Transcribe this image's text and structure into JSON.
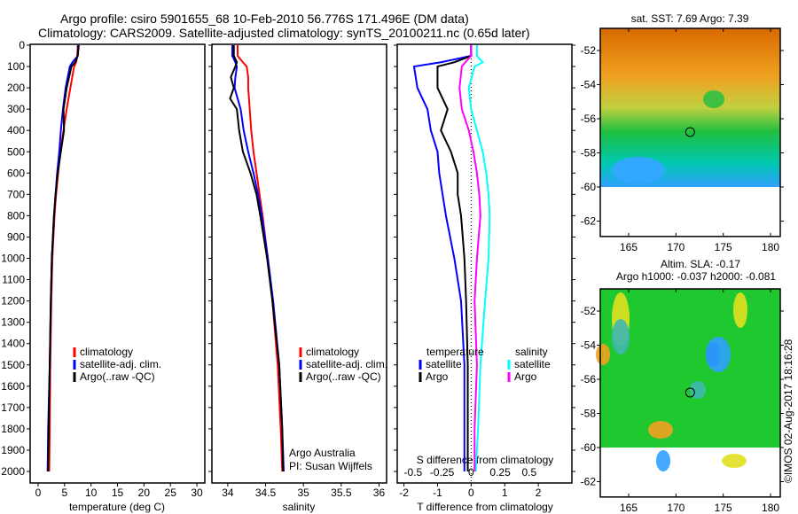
{
  "title_line1": "Argo profile: csiro 5901655_68 10-Feb-2010 56.776S 171.496E (DM data)",
  "title_line2": "Climatology: CARS2009. Satellite-adjusted climatology: synTS_20100211.nc (0.65d later)",
  "colors": {
    "climatology": "#ff0000",
    "satellite": "#0000ff",
    "argo": "#000000",
    "sal_satellite": "#00ffff",
    "sal_argo": "#ff00ff"
  },
  "chart_data": [
    {
      "type": "line",
      "name": "temperature",
      "xlabel": "temperature (deg C)",
      "xlim": [
        -1.5,
        31.5
      ],
      "ylim": [
        2050,
        0
      ],
      "xticks": [
        0,
        5,
        10,
        15,
        20,
        25,
        30
      ],
      "yticks": [
        0,
        100,
        200,
        300,
        400,
        500,
        600,
        700,
        800,
        900,
        1000,
        1100,
        1200,
        1300,
        1400,
        1500,
        1600,
        1700,
        1800,
        1900,
        2000
      ],
      "legend": [
        "climatology",
        "satellite-adj. clim.",
        "Argo(..raw -QC)"
      ],
      "depth": [
        0,
        50,
        80,
        100,
        200,
        300,
        400,
        500,
        600,
        700,
        800,
        900,
        1000,
        1200,
        1500,
        1800,
        2000
      ],
      "series": [
        {
          "name": "climatology",
          "values": [
            7.5,
            7.4,
            7.2,
            6.8,
            6.1,
            5.4,
            4.8,
            4.2,
            3.8,
            3.4,
            3.1,
            2.9,
            2.7,
            2.5,
            2.3,
            2.2,
            2.1
          ]
        },
        {
          "name": "satellite-adj. clim.",
          "values": [
            7.7,
            7.5,
            6.5,
            6.0,
            5.2,
            4.7,
            4.3,
            4.0,
            3.6,
            3.3,
            3.0,
            2.8,
            2.6,
            2.4,
            2.2,
            1.9,
            1.8
          ]
        },
        {
          "name": "Argo(..raw -QC)",
          "values": [
            7.6,
            7.5,
            7.0,
            6.3,
            5.4,
            4.8,
            4.9,
            4.3,
            3.7,
            3.3,
            3.0,
            2.8,
            2.6,
            2.4,
            2.2,
            2.0,
            1.9
          ]
        }
      ]
    },
    {
      "type": "line",
      "name": "salinity",
      "xlabel": "salinity",
      "xlim": [
        33.79,
        36.1
      ],
      "xticks": [
        34,
        34.5,
        35,
        35.5,
        36
      ],
      "legend": [
        "climatology",
        "satellite-adj. clim.",
        "Argo(..raw -QC)"
      ],
      "annotation": [
        "Argo Australia",
        "PI: Susan Wijffels"
      ],
      "depth": [
        0,
        50,
        80,
        100,
        150,
        200,
        250,
        300,
        400,
        500,
        600,
        700,
        800,
        1000,
        1200,
        1500,
        1800,
        2000
      ],
      "series": [
        {
          "name": "climatology",
          "values": [
            34.13,
            34.13,
            34.2,
            34.25,
            34.27,
            34.27,
            34.28,
            34.29,
            34.31,
            34.34,
            34.38,
            34.42,
            34.46,
            34.53,
            34.59,
            34.66,
            34.7,
            34.72
          ]
        },
        {
          "name": "satellite-adj. clim.",
          "values": [
            34.06,
            34.06,
            34.1,
            34.12,
            34.1,
            34.09,
            34.13,
            34.17,
            34.21,
            34.27,
            34.34,
            34.4,
            34.45,
            34.53,
            34.6,
            34.68,
            34.72,
            34.74
          ]
        },
        {
          "name": "Argo(..raw -QC)",
          "values": [
            34.08,
            34.08,
            34.12,
            34.1,
            34.04,
            34.08,
            34.03,
            34.12,
            34.15,
            34.2,
            34.3,
            34.38,
            34.43,
            34.52,
            34.59,
            34.68,
            34.72,
            34.73
          ]
        }
      ]
    },
    {
      "type": "line",
      "name": "difference",
      "xlabel": "T difference from climatology",
      "x2label": "S difference from climatology",
      "xlim": [
        -2.2,
        3.0
      ],
      "xticks": [
        -2,
        -1,
        0,
        1,
        2
      ],
      "x2ticks": [
        "-0.5",
        "-0.25",
        "0",
        "0.25",
        "0.5"
      ],
      "legend_t": [
        "temperature",
        "satellite",
        "Argo"
      ],
      "legend_s": [
        "salinity",
        "satellite",
        "Argo"
      ],
      "depth": [
        0,
        50,
        80,
        100,
        200,
        300,
        400,
        500,
        600,
        700,
        800,
        1000,
        1200,
        1500,
        1800,
        2000
      ],
      "series": [
        {
          "name": "T satellite",
          "values": [
            0.0,
            0.0,
            -0.9,
            -1.7,
            -1.6,
            -1.3,
            -1.2,
            -1.0,
            -0.95,
            -0.85,
            -0.75,
            -0.5,
            -0.3,
            -0.2,
            -0.2,
            -0.2
          ]
        },
        {
          "name": "T Argo",
          "values": [
            0.0,
            0.0,
            -0.5,
            -1.0,
            -1.0,
            -0.7,
            -0.9,
            -0.6,
            -0.4,
            -0.4,
            -0.3,
            -0.2,
            -0.15,
            -0.1,
            -0.1,
            -0.1
          ]
        },
        {
          "name": "S satellite",
          "values": [
            0.05,
            0.05,
            0.1,
            0.03,
            -0.02,
            0.0,
            0.05,
            0.1,
            0.13,
            0.15,
            0.16,
            0.15,
            0.12,
            0.08,
            0.06,
            0.04
          ]
        },
        {
          "name": "S Argo",
          "values": [
            0.0,
            0.0,
            -0.05,
            -0.08,
            -0.1,
            -0.08,
            -0.02,
            0.02,
            0.05,
            0.07,
            0.08,
            0.05,
            0.03,
            0.05,
            0.03,
            0.03
          ]
        }
      ]
    },
    {
      "type": "heatmap",
      "name": "sst_map",
      "title": "sat. SST: 7.69 Argo: 7.39",
      "xticks": [
        165,
        170,
        175,
        180
      ],
      "yticks": [
        -52,
        -54,
        -56,
        -58,
        -60,
        -62
      ],
      "argo_lon": 171.496,
      "argo_lat": -56.776
    },
    {
      "type": "heatmap",
      "name": "sla_map",
      "title1": "Altim. SLA: -0.17",
      "title2": "Argo h1000: -0.037 h2000: -0.081",
      "xticks": [
        165,
        170,
        175,
        180
      ],
      "yticks": [
        -52,
        -54,
        -56,
        -58,
        -60,
        -62
      ],
      "argo_lon": 171.496,
      "argo_lat": -56.776
    }
  ],
  "credit": "©IMOS 02-Aug-2017 18:16:28"
}
